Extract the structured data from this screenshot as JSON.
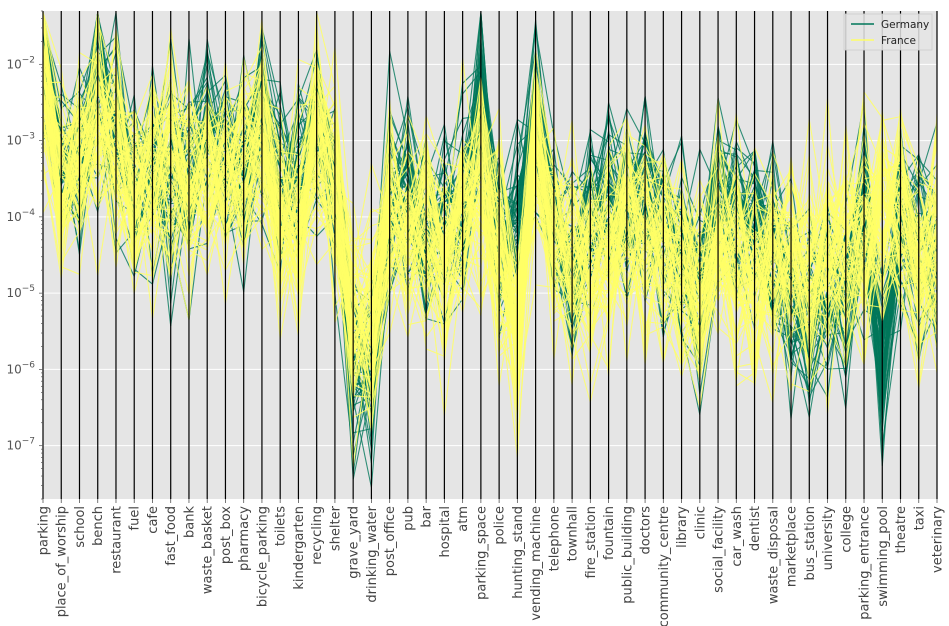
{
  "chart_data": {
    "type": "line",
    "subtype": "parallel-coordinates",
    "title": "",
    "xlabel": "",
    "ylabel": "",
    "y_scale": "log",
    "ylim": [
      2e-08,
      0.05
    ],
    "y_ticks": [
      {
        "value": 1e-07,
        "base": "10",
        "exp": "−7"
      },
      {
        "value": 1e-06,
        "base": "10",
        "exp": "−6"
      },
      {
        "value": 1e-05,
        "base": "10",
        "exp": "−5"
      },
      {
        "value": 0.0001,
        "base": "10",
        "exp": "−4"
      },
      {
        "value": 0.001,
        "base": "10",
        "exp": "−3"
      },
      {
        "value": 0.01,
        "base": "10",
        "exp": "−2"
      }
    ],
    "grid": true,
    "background": "#e5e5e5",
    "legend_position": "top-right",
    "categories": [
      "parking",
      "place_of_worship",
      "school",
      "bench",
      "restaurant",
      "fuel",
      "cafe",
      "fast_food",
      "bank",
      "waste_basket",
      "post_box",
      "pharmacy",
      "bicycle_parking",
      "toilets",
      "kindergarten",
      "recycling",
      "shelter",
      "grave_yard",
      "drinking_water",
      "post_office",
      "pub",
      "bar",
      "hospital",
      "atm",
      "parking_space",
      "police",
      "hunting_stand",
      "vending_machine",
      "telephone",
      "townhall",
      "fire_station",
      "fountain",
      "public_building",
      "doctors",
      "community_centre",
      "library",
      "clinic",
      "social_facility",
      "car_wash",
      "dentist",
      "waste_disposal",
      "marketplace",
      "bus_station",
      "university",
      "college",
      "parking_entrance",
      "swimming_pool",
      "theatre",
      "taxi",
      "veterinary"
    ],
    "series": [
      {
        "name": "Germany",
        "color": "#00775a",
        "lines": 55,
        "values": [
          0.016,
          0.0005,
          0.0004,
          0.005,
          0.0015,
          0.0003,
          0.0005,
          0.0004,
          0.0003,
          0.002,
          0.0005,
          0.0003,
          0.003,
          0.0003,
          0.0003,
          0.0015,
          0.0003,
          1e-06,
          1e-06,
          0.00015,
          0.0002,
          5e-05,
          8e-05,
          0.0001,
          0.003,
          5e-05,
          8e-05,
          0.002,
          0.0001,
          2e-05,
          0.0001,
          0.0002,
          0.00015,
          0.0002,
          8e-05,
          4e-05,
          1e-05,
          0.0002,
          0.0001,
          0.0001,
          3e-05,
          1e-05,
          3e-06,
          1e-05,
          5e-06,
          0.0001,
          1e-06,
          0.0001,
          5e-05,
          4e-05
        ]
      },
      {
        "name": "France",
        "color": "#ffff66",
        "lines": 75,
        "values": [
          0.006,
          0.0003,
          0.0005,
          0.0015,
          0.001,
          0.0002,
          0.0004,
          0.0004,
          0.0003,
          0.0003,
          0.0003,
          0.0005,
          0.001,
          0.0001,
          0.0001,
          0.001,
          0.0002,
          5e-06,
          5e-06,
          0.0001,
          5e-05,
          0.0001,
          3e-05,
          0.0001,
          0.0002,
          3e-05,
          3e-06,
          0.001,
          5e-05,
          3e-05,
          2e-05,
          4e-05,
          0.0001,
          5e-05,
          4e-05,
          2e-05,
          1e-05,
          5e-05,
          3e-05,
          2e-05,
          3e-05,
          3e-05,
          2e-05,
          3e-05,
          3e-05,
          5e-05,
          0.0001,
          0.0001,
          2e-05,
          5e-05
        ]
      }
    ]
  }
}
